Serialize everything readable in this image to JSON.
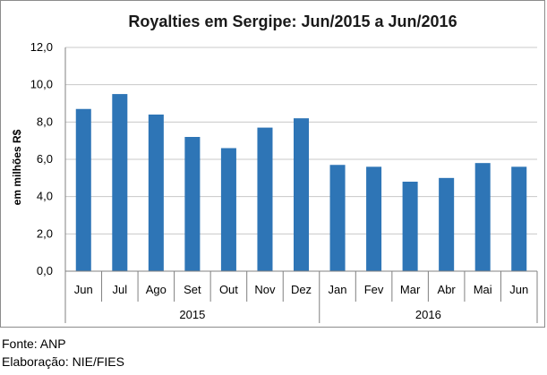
{
  "chart_data": {
    "type": "bar",
    "title": "Royalties em Sergipe: Jun/2015 a Jun/2016",
    "ylabel": "em milhões R$",
    "xlabel": "",
    "ylim": [
      0,
      12
    ],
    "yticks": [
      "0,0",
      "2,0",
      "4,0",
      "6,0",
      "8,0",
      "10,0",
      "12,0"
    ],
    "grid": true,
    "legend": "none",
    "bar_color": "#2e75b6",
    "categories": [
      "Jun",
      "Jul",
      "Ago",
      "Set",
      "Out",
      "Nov",
      "Dez",
      "Jan",
      "Fev",
      "Mar",
      "Abr",
      "Mai",
      "Jun"
    ],
    "values": [
      8.7,
      9.5,
      8.4,
      7.2,
      6.6,
      7.7,
      8.2,
      5.7,
      5.6,
      4.8,
      5.0,
      5.8,
      5.6
    ],
    "groups": [
      {
        "label": "2015",
        "count": 7
      },
      {
        "label": "2016",
        "count": 6
      }
    ]
  },
  "notes": {
    "source": "Fonte: ANP",
    "elaboration": "Elaboração: NIE/FIES"
  }
}
